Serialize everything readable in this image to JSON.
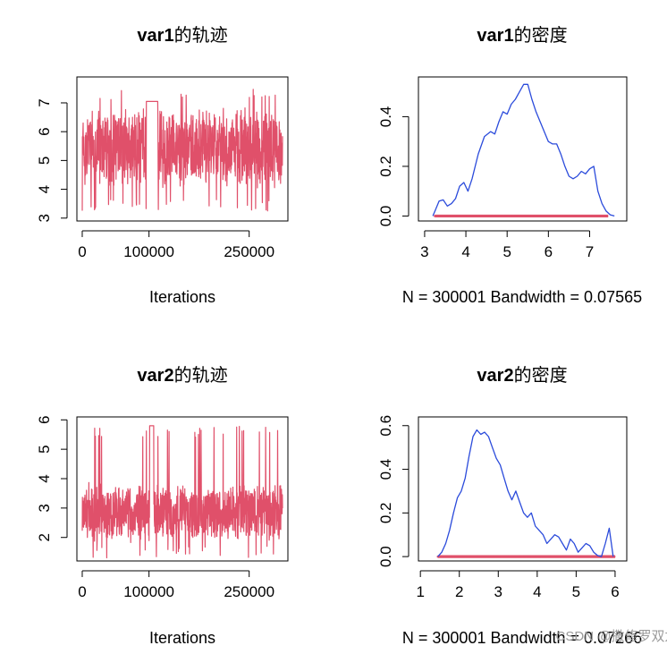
{
  "watermark": "CSDN @撒修罗双龙",
  "colors": {
    "trace": "#E0506A",
    "density": "#2B4BDB",
    "rug": "#E0506A",
    "frame": "#000000"
  },
  "chart_data": [
    {
      "id": "var1-trace",
      "type": "line",
      "title": {
        "bold": "var1",
        "rest": "的轨迹"
      },
      "xlabel": "Iterations",
      "xlim": [
        -8000,
        308000
      ],
      "ylim": [
        2.9,
        7.9
      ],
      "xticks": [
        0,
        100000,
        250000
      ],
      "yticks": [
        3,
        4,
        5,
        6,
        7
      ],
      "trace_summary": {
        "n": 300001,
        "min": 3.25,
        "max": 7.5,
        "typical_low": 4.0,
        "typical_high": 6.9,
        "flat_segment": {
          "x": [
            96000,
            113000
          ],
          "y": 7.05
        }
      }
    },
    {
      "id": "var1-density",
      "type": "line",
      "title": {
        "bold": "var1",
        "rest": "的密度"
      },
      "xlabel": "N = 300001   Bandwidth = 0.07565",
      "xlim": [
        2.85,
        7.9
      ],
      "ylim": [
        -0.02,
        0.56
      ],
      "xticks": [
        3,
        4,
        5,
        6,
        7
      ],
      "yticks": [
        0.0,
        0.2,
        0.4
      ],
      "ytick_labels": [
        "0.0",
        "0.2",
        "0.4"
      ],
      "series": [
        {
          "x": [
            3.2,
            3.25,
            3.35,
            3.45,
            3.55,
            3.65,
            3.75,
            3.85,
            3.95,
            4.05,
            4.15,
            4.3,
            4.45,
            4.6,
            4.7,
            4.8,
            4.9,
            5.0,
            5.1,
            5.2,
            5.3,
            5.4,
            5.5,
            5.6,
            5.7,
            5.8,
            5.9,
            6.0,
            6.1,
            6.2,
            6.3,
            6.4,
            6.5,
            6.6,
            6.7,
            6.8,
            6.9,
            7.0,
            7.1,
            7.2,
            7.3,
            7.4,
            7.5,
            7.6
          ],
          "y": [
            0.0,
            0.02,
            0.06,
            0.065,
            0.04,
            0.05,
            0.07,
            0.12,
            0.135,
            0.1,
            0.15,
            0.25,
            0.32,
            0.34,
            0.33,
            0.38,
            0.42,
            0.41,
            0.45,
            0.47,
            0.5,
            0.53,
            0.53,
            0.47,
            0.42,
            0.38,
            0.34,
            0.3,
            0.29,
            0.29,
            0.25,
            0.2,
            0.16,
            0.15,
            0.16,
            0.18,
            0.17,
            0.19,
            0.2,
            0.1,
            0.05,
            0.02,
            0.005,
            0.0
          ]
        }
      ],
      "rug": {
        "from": 3.25,
        "to": 7.45
      }
    },
    {
      "id": "var2-trace",
      "type": "line",
      "title": {
        "bold": "var2",
        "rest": "的轨迹"
      },
      "xlabel": "Iterations",
      "xlim": [
        -8000,
        308000
      ],
      "ylim": [
        1.2,
        6.1
      ],
      "xticks": [
        0,
        100000,
        250000
      ],
      "yticks": [
        2,
        3,
        4,
        5,
        6
      ],
      "trace_summary": {
        "n": 300001,
        "min": 1.3,
        "max": 5.8,
        "typical_low": 1.8,
        "typical_high": 3.9,
        "flat_segment": {
          "x": [
            101000,
            107000
          ],
          "y": 5.8
        }
      }
    },
    {
      "id": "var2-density",
      "type": "line",
      "title": {
        "bold": "var2",
        "rest": "的密度"
      },
      "xlabel": "N = 300001   Bandwidth = 0.07266",
      "xlim": [
        0.95,
        6.3
      ],
      "ylim": [
        -0.02,
        0.64
      ],
      "xticks": [
        1,
        2,
        3,
        4,
        5,
        6
      ],
      "yticks": [
        0.0,
        0.2,
        0.4,
        0.6
      ],
      "ytick_labels": [
        "0.0",
        "0.2",
        "0.4",
        "0.6"
      ],
      "series": [
        {
          "x": [
            1.45,
            1.55,
            1.65,
            1.75,
            1.85,
            1.95,
            2.05,
            2.15,
            2.25,
            2.35,
            2.45,
            2.55,
            2.65,
            2.75,
            2.85,
            2.95,
            3.05,
            3.15,
            3.25,
            3.35,
            3.45,
            3.55,
            3.65,
            3.75,
            3.85,
            3.95,
            4.05,
            4.15,
            4.25,
            4.35,
            4.45,
            4.55,
            4.65,
            4.75,
            4.85,
            4.95,
            5.05,
            5.15,
            5.25,
            5.35,
            5.45,
            5.55,
            5.65,
            5.75,
            5.85,
            5.95
          ],
          "y": [
            0.0,
            0.02,
            0.06,
            0.12,
            0.2,
            0.27,
            0.3,
            0.36,
            0.46,
            0.55,
            0.58,
            0.56,
            0.57,
            0.55,
            0.5,
            0.45,
            0.42,
            0.36,
            0.3,
            0.26,
            0.3,
            0.25,
            0.2,
            0.18,
            0.2,
            0.14,
            0.12,
            0.1,
            0.06,
            0.08,
            0.1,
            0.09,
            0.06,
            0.03,
            0.08,
            0.06,
            0.02,
            0.04,
            0.06,
            0.05,
            0.02,
            0.005,
            0.0,
            0.06,
            0.13,
            0.0
          ]
        }
      ],
      "rug": {
        "from": 1.45,
        "to": 6.0
      }
    }
  ]
}
